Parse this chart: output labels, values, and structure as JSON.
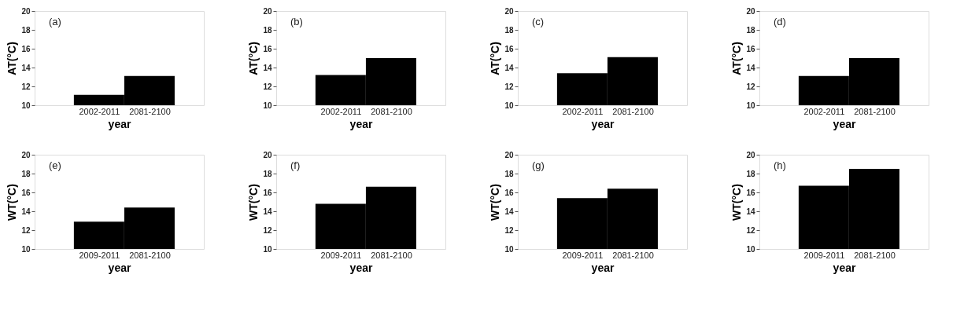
{
  "chart_data": [
    {
      "type": "bar",
      "categories": [
        "2002-2011",
        "2081-2100"
      ],
      "values": [
        11.1,
        13.1
      ],
      "color": "#000000",
      "xlabel": "year",
      "ylabel": "AT(°C)",
      "ylim": [
        10,
        20
      ],
      "yticks": [
        10,
        12,
        14,
        16,
        18,
        20
      ],
      "grid": false,
      "annotations": [
        "(a)"
      ]
    },
    {
      "type": "bar",
      "categories": [
        "2002-2011",
        "2081-2100"
      ],
      "values": [
        13.2,
        15.0
      ],
      "color": "#000000",
      "xlabel": "year",
      "ylabel": "AT(°C)",
      "ylim": [
        10,
        20
      ],
      "yticks": [
        10,
        12,
        14,
        16,
        18,
        20
      ],
      "grid": false,
      "annotations": [
        "(b)"
      ]
    },
    {
      "type": "bar",
      "categories": [
        "2002-2011",
        "2081-2100"
      ],
      "values": [
        13.4,
        15.1
      ],
      "color": "#000000",
      "xlabel": "year",
      "ylabel": "AT(°C)",
      "ylim": [
        10,
        20
      ],
      "yticks": [
        10,
        12,
        14,
        16,
        18,
        20
      ],
      "grid": false,
      "annotations": [
        "(c)"
      ]
    },
    {
      "type": "bar",
      "categories": [
        "2002-2011",
        "2081-2100"
      ],
      "values": [
        13.1,
        15.0
      ],
      "color": "#000000",
      "xlabel": "year",
      "ylabel": "AT(°C)",
      "ylim": [
        10,
        20
      ],
      "yticks": [
        10,
        12,
        14,
        16,
        18,
        20
      ],
      "grid": false,
      "annotations": [
        "(d)"
      ]
    },
    {
      "type": "bar",
      "categories": [
        "2009-2011",
        "2081-2100"
      ],
      "values": [
        12.9,
        14.4
      ],
      "color": "#000000",
      "xlabel": "year",
      "ylabel": "WT(°C)",
      "ylim": [
        10,
        20
      ],
      "yticks": [
        10,
        12,
        14,
        16,
        18,
        20
      ],
      "grid": false,
      "annotations": [
        "(e)"
      ]
    },
    {
      "type": "bar",
      "categories": [
        "2009-2011",
        "2081-2100"
      ],
      "values": [
        14.8,
        16.6
      ],
      "color": "#000000",
      "xlabel": "year",
      "ylabel": "WT(°C)",
      "ylim": [
        10,
        20
      ],
      "yticks": [
        10,
        12,
        14,
        16,
        18,
        20
      ],
      "grid": false,
      "annotations": [
        "(f)"
      ]
    },
    {
      "type": "bar",
      "categories": [
        "2009-2011",
        "2081-2100"
      ],
      "values": [
        15.4,
        16.4
      ],
      "color": "#000000",
      "xlabel": "year",
      "ylabel": "WT(°C)",
      "ylim": [
        10,
        20
      ],
      "yticks": [
        10,
        12,
        14,
        16,
        18,
        20
      ],
      "grid": false,
      "annotations": [
        "(g)"
      ]
    },
    {
      "type": "bar",
      "categories": [
        "2009-2011",
        "2081-2100"
      ],
      "values": [
        16.7,
        18.5
      ],
      "color": "#000000",
      "xlabel": "year",
      "ylabel": "WT(°C)",
      "ylim": [
        10,
        20
      ],
      "yticks": [
        10,
        12,
        14,
        16,
        18,
        20
      ],
      "grid": false,
      "annotations": [
        "(h)"
      ]
    }
  ]
}
